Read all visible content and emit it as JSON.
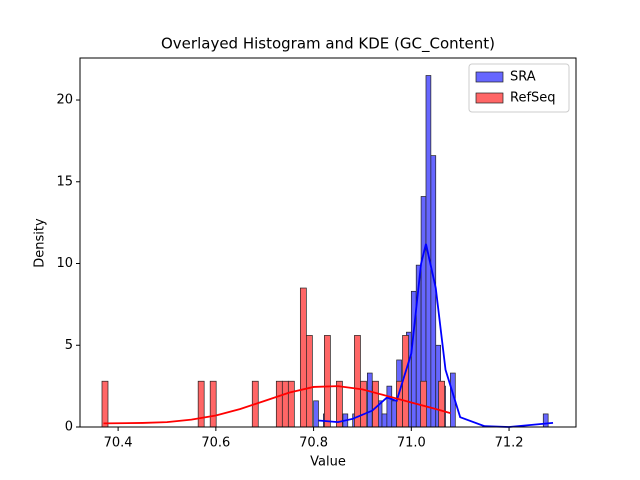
{
  "chart_data": {
    "type": "histogram",
    "title": "Overlayed Histogram and KDE (GC_Content)",
    "x_label": "Value",
    "y_label": "Density",
    "xlim": [
      70.322,
      71.337
    ],
    "ylim": [
      0,
      22.57
    ],
    "xticks": [
      70.4,
      70.6,
      70.8,
      {
        "value": 71,
        "label": "71.0"
      },
      71.2
    ],
    "yticks": [
      0,
      5,
      10,
      15,
      20
    ],
    "legend": "upper right",
    "series": [
      {
        "name": "SRA",
        "color": "#6666ff",
        "line_color": "#0000ff",
        "bins": [
          70.8,
          70.81,
          70.82,
          70.83,
          70.84,
          70.85,
          70.86,
          70.87,
          70.88,
          70.89,
          70.9,
          70.91,
          70.92,
          70.93,
          70.94,
          70.95,
          70.96,
          70.97,
          70.98,
          70.99,
          71.0,
          71.01,
          71.02,
          71.03,
          71.04,
          71.05,
          71.06,
          71.07,
          71.08,
          71.09,
          71.1,
          71.11,
          71.12,
          71.13,
          71.14,
          71.15,
          71.16,
          71.17,
          71.18,
          71.19,
          71.2,
          71.21,
          71.22,
          71.23,
          71.24,
          71.25,
          71.26,
          71.27,
          71.28
        ],
        "values": [
          1.6,
          0,
          0.8,
          0,
          0,
          0,
          0.8,
          0,
          0.8,
          1.6,
          0,
          3.3,
          2.5,
          1.6,
          0.8,
          2.5,
          1.6,
          4.1,
          2.5,
          5.8,
          8.3,
          9.9,
          14.1,
          21.5,
          16.6,
          5.0,
          2.5,
          0,
          3.3,
          0,
          0,
          0,
          0,
          0,
          0,
          0,
          0,
          0,
          0,
          0,
          0,
          0,
          0,
          0,
          0,
          0,
          0,
          0.8
        ],
        "kde_x": [
          70.81,
          70.85,
          70.88,
          70.92,
          70.95,
          70.97,
          71.0,
          71.02,
          71.03,
          71.05,
          71.07,
          71.1,
          71.15,
          71.2,
          71.29
        ],
        "kde_y": [
          0.4,
          0.3,
          0.5,
          1.0,
          1.8,
          1.6,
          4.5,
          10,
          11.2,
          8.5,
          3.5,
          0.6,
          0.05,
          0,
          0.25
        ]
      },
      {
        "name": "RefSeq",
        "color": "#ff6666",
        "line_color": "#ff0000",
        "bins": [
          70.367,
          70.3793,
          70.3916,
          70.4039,
          70.4162,
          70.4285,
          70.4408,
          70.4531,
          70.4654,
          70.4777,
          70.49,
          70.5023,
          70.5146,
          70.5269,
          70.5392,
          70.5515,
          70.5638,
          70.5761,
          70.5884,
          70.6007,
          70.613,
          70.6253,
          70.6376,
          70.6499,
          70.6622,
          70.6745,
          70.6868,
          70.6991,
          70.7114,
          70.7237,
          70.736,
          70.7483,
          70.7606,
          70.7729,
          70.7852,
          70.7975,
          70.8098,
          70.8221,
          70.8344,
          70.8467,
          70.859,
          70.8713,
          70.8836,
          70.8959,
          70.9082,
          70.9205,
          70.9328,
          70.9451,
          70.9574,
          70.9697,
          70.982,
          70.9943,
          71.0066,
          71.0189,
          71.0312,
          71.0435,
          71.0558,
          71.0681,
          71.0804
        ],
        "values": [
          2.8,
          0,
          0,
          0,
          0,
          0,
          0,
          0,
          0,
          0,
          0,
          0,
          0,
          0,
          0,
          0,
          2.8,
          0,
          2.8,
          0,
          0,
          0,
          0,
          0,
          0,
          2.8,
          0,
          0,
          0,
          2.8,
          2.8,
          2.8,
          0,
          8.5,
          5.6,
          0,
          0,
          5.6,
          0,
          2.8,
          0,
          0,
          5.6,
          2.8,
          0,
          2.8,
          0,
          0,
          0,
          2.8,
          5.6,
          0,
          0,
          2.8,
          0,
          0,
          2.8,
          0
        ],
        "kde_x": [
          70.37,
          70.45,
          70.5,
          70.55,
          70.6,
          70.65,
          70.7,
          70.75,
          70.8,
          70.85,
          70.9,
          70.95,
          71.0,
          71.05,
          71.08
        ],
        "kde_y": [
          0.22,
          0.25,
          0.3,
          0.45,
          0.7,
          1.1,
          1.6,
          2.1,
          2.45,
          2.5,
          2.3,
          1.9,
          1.5,
          1.1,
          0.85
        ]
      }
    ]
  }
}
